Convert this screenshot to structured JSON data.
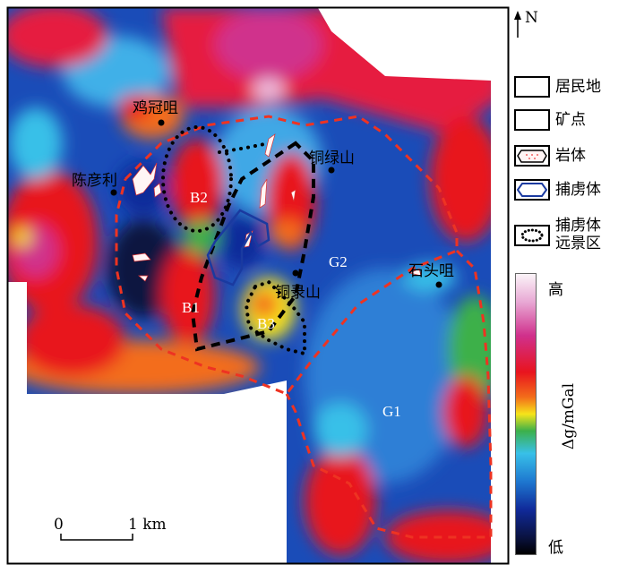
{
  "north_label": "N",
  "place_labels": {
    "jiguanju": "鸡冠咀",
    "chenyanli": "陈彦利",
    "tonglvshan": "铜绿山",
    "shitouju": "石头咀",
    "tonglushan": "铜录山"
  },
  "zone_labels": {
    "b1": "B1",
    "b2": "B2",
    "b3": "B3",
    "g1": "G1",
    "g2": "G2"
  },
  "legend": {
    "settlement": "居民地",
    "ore_point": "矿点",
    "rock_body": "岩体",
    "xenolith": "捕虏体",
    "xenolith_prospect": "捕虏体\n远景区",
    "xenolith_prospect_line1": "捕虏体",
    "xenolith_prospect_line2": "远景区"
  },
  "colorbar": {
    "high": "高",
    "low": "低",
    "unit": "Δg/mGal",
    "colors": [
      "#fbf4f8",
      "#d0308c",
      "#e8141e",
      "#f36d1a",
      "#f6e41a",
      "#3cb04a",
      "#38c0e8",
      "#1e78d0",
      "#102a9a",
      "#000000"
    ]
  },
  "scale_bar": {
    "start": "0",
    "end": "1 km"
  }
}
